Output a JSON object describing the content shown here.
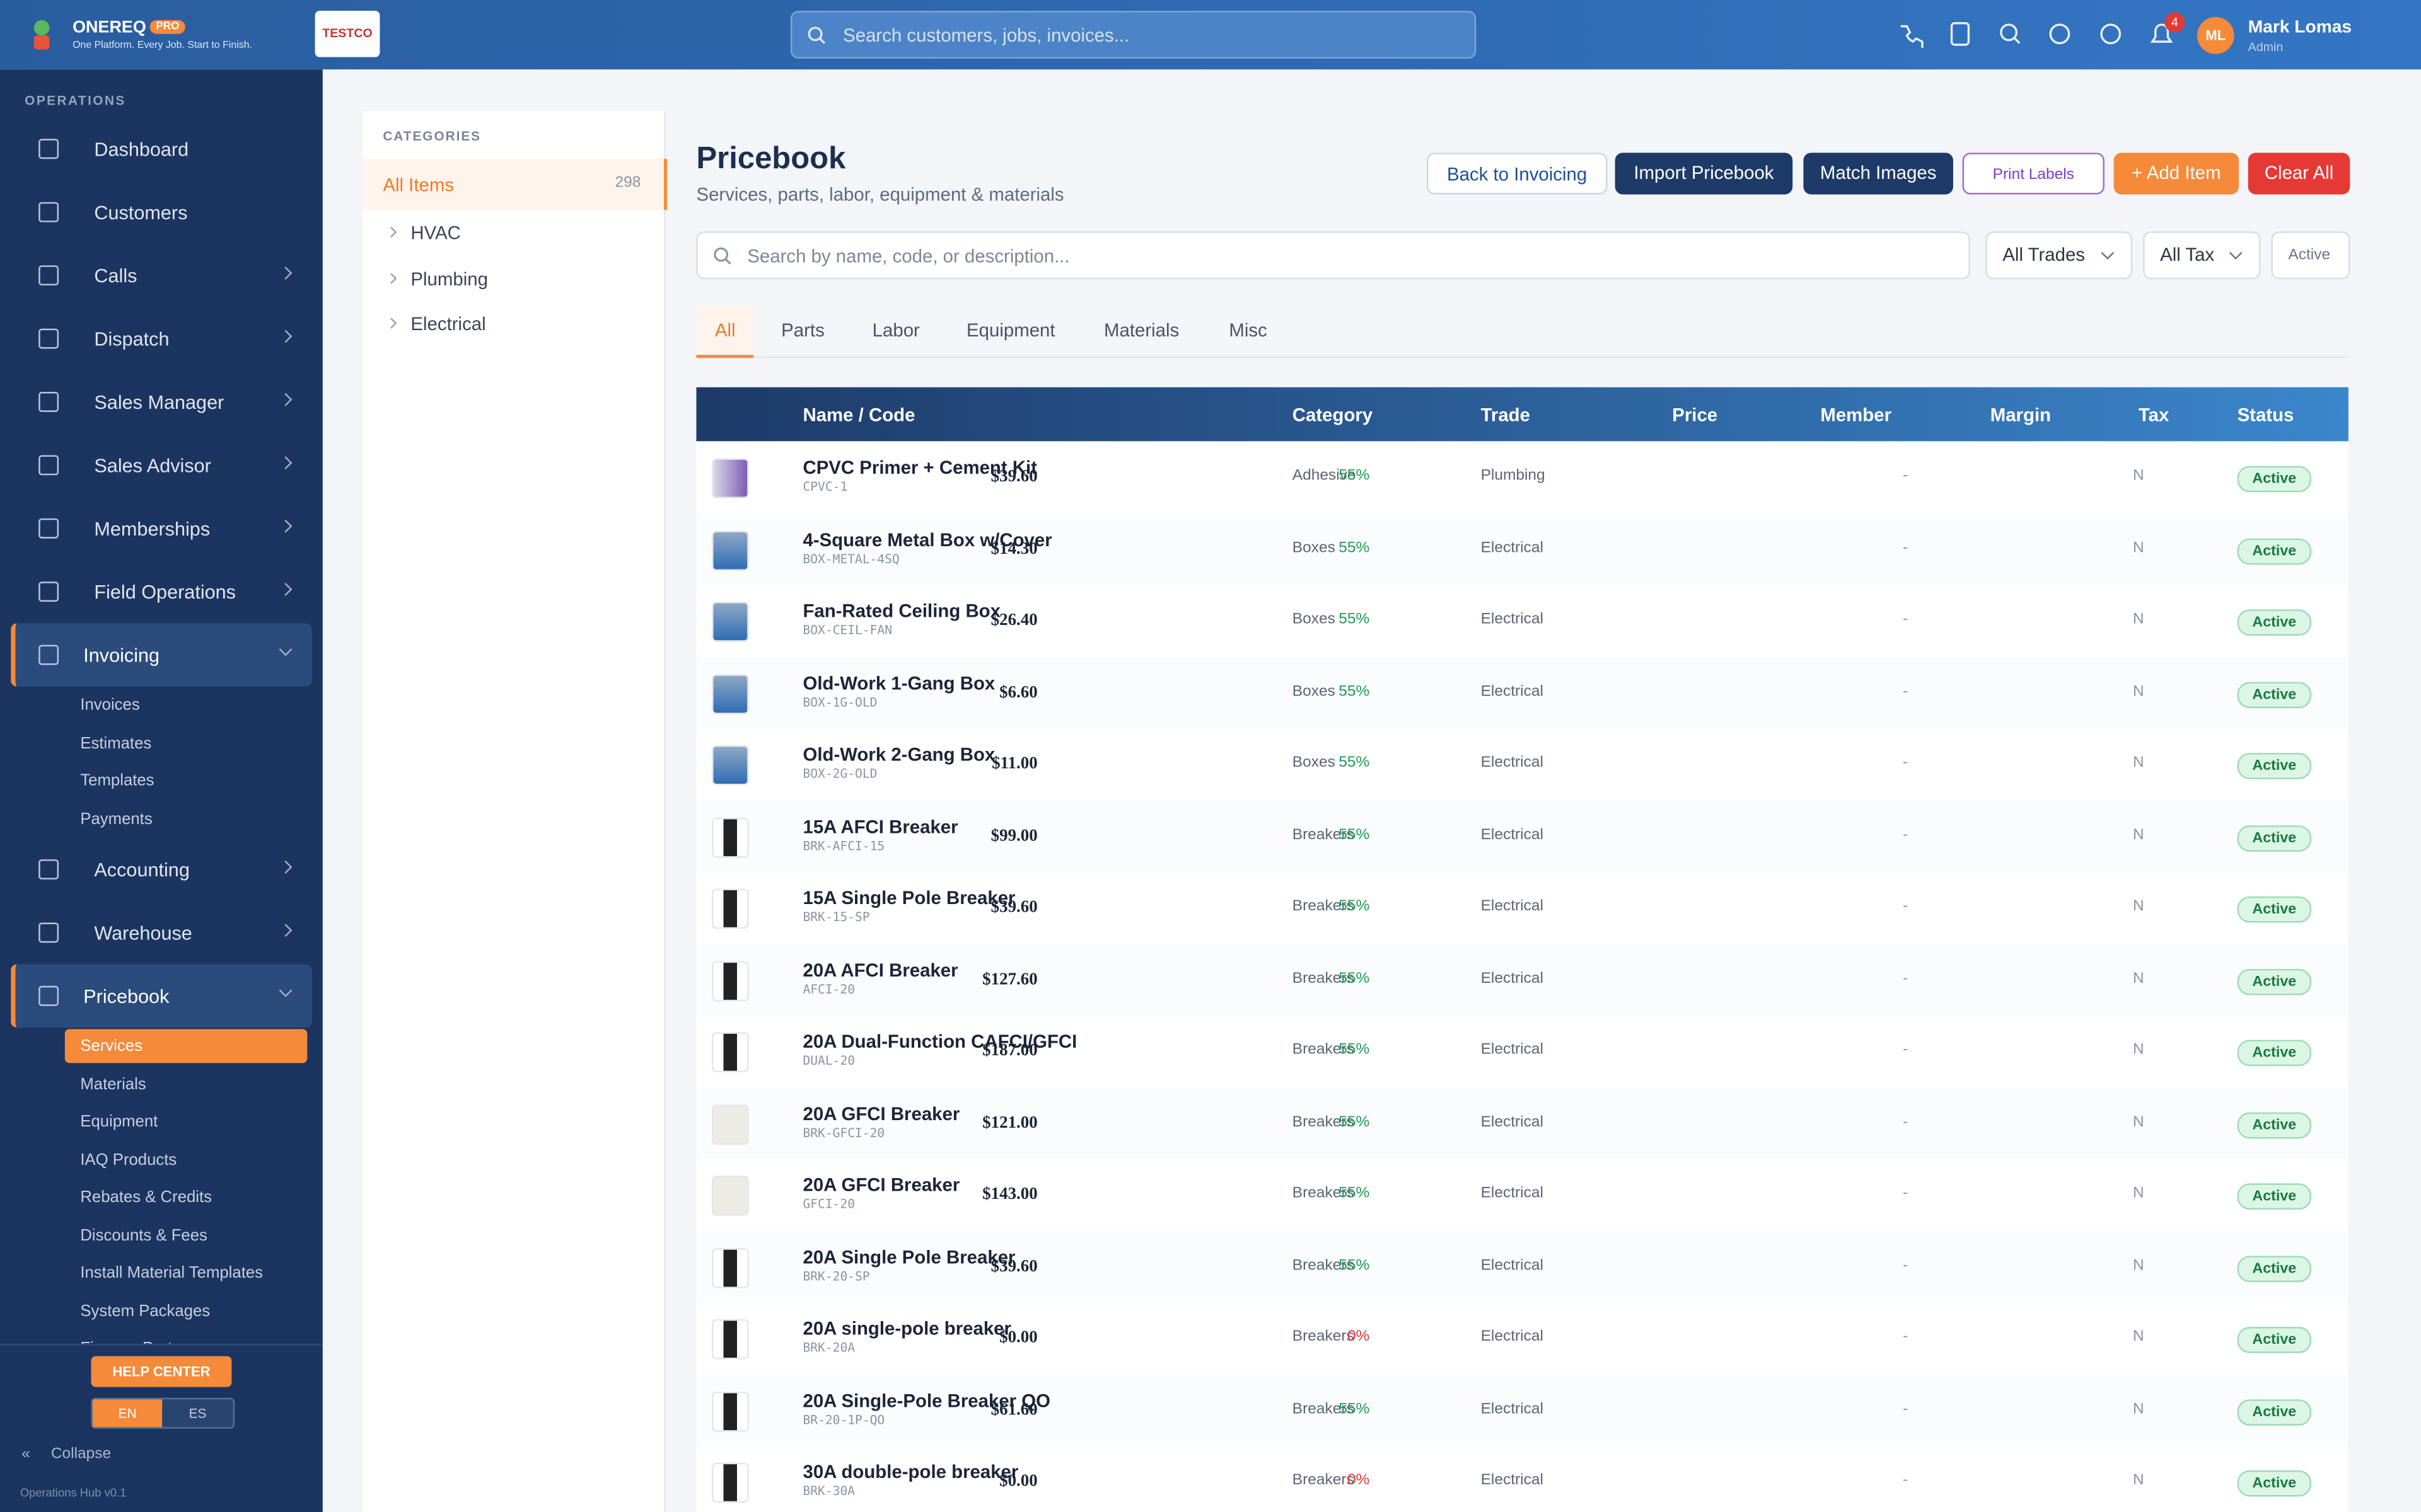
{
  "header": {
    "brand": "ONEREQ",
    "badge": "PRO",
    "tagline": "One Platform. Every Job. Start to Finish.",
    "logo": "TESTCO",
    "search": "Search customers, jobs, invoices...",
    "notifications": "4",
    "avatar": "ML",
    "user": "Mark Lomas",
    "role": "Admin"
  },
  "sidebar": {
    "section": "OPERATIONS",
    "items": [
      {
        "label": "Dashboard"
      },
      {
        "label": "Customers"
      },
      {
        "label": "Calls"
      },
      {
        "label": "Dispatch"
      },
      {
        "label": "Sales Manager"
      },
      {
        "label": "Sales Advisor"
      },
      {
        "label": "Memberships"
      },
      {
        "label": "Field Operations"
      },
      {
        "label": "Invoicing",
        "children": [
          "Invoices",
          "Estimates",
          "Templates",
          "Payments"
        ]
      },
      {
        "label": "Accounting"
      },
      {
        "label": "Warehouse"
      },
      {
        "label": "Pricebook",
        "children": [
          "Services",
          "Materials",
          "Equipment",
          "IAQ Products",
          "Rebates & Credits",
          "Discounts & Fees",
          "Install Material Templates",
          "System Packages",
          "Finance Partners"
        ]
      }
    ],
    "help": "HELP CENTER",
    "lang": [
      "EN",
      "ES"
    ],
    "collapse": "Collapse",
    "version": "Operations Hub v0.1"
  },
  "categories": {
    "title": "CATEGORIES",
    "items": [
      {
        "label": "All Items",
        "count": "298"
      },
      {
        "label": "HVAC"
      },
      {
        "label": "Plumbing"
      },
      {
        "label": "Electrical"
      }
    ]
  },
  "main": {
    "title": "Pricebook",
    "subtitle": "Services, parts, labor, equipment & materials",
    "buttons": [
      "Back to Invoicing",
      "Import Pricebook",
      "Match Images",
      "Print Labels",
      "+ Add Item",
      "Clear All"
    ],
    "search": "Search by name, code, or description...",
    "filters": [
      "All Trades",
      "All Tax",
      "Active"
    ],
    "tabs": [
      "All",
      "Parts",
      "Labor",
      "Equipment",
      "Materials",
      "Misc"
    ]
  },
  "table": {
    "columns": [
      "Name / Code",
      "Category",
      "Trade",
      "Price",
      "Member",
      "Margin",
      "Tax",
      "Status"
    ],
    "rows": [
      [
        "CPVC Primer + Cement Kit",
        "CPVC-1",
        "Adhesive",
        "Plumbing",
        "$39.60",
        "-",
        "55%",
        "N",
        "Active"
      ],
      [
        "4-Square Metal Box w/Cover",
        "BOX-METAL-4SQ",
        "Boxes",
        "Electrical",
        "$14.30",
        "-",
        "55%",
        "N",
        "Active"
      ],
      [
        "Fan-Rated Ceiling Box",
        "BOX-CEIL-FAN",
        "Boxes",
        "Electrical",
        "$26.40",
        "-",
        "55%",
        "N",
        "Active"
      ],
      [
        "Old-Work 1-Gang Box",
        "BOX-1G-OLD",
        "Boxes",
        "Electrical",
        "$6.60",
        "-",
        "55%",
        "N",
        "Active"
      ],
      [
        "Old-Work 2-Gang Box",
        "BOX-2G-OLD",
        "Boxes",
        "Electrical",
        "$11.00",
        "-",
        "55%",
        "N",
        "Active"
      ],
      [
        "15A AFCI Breaker",
        "BRK-AFCI-15",
        "Breakers",
        "Electrical",
        "$99.00",
        "-",
        "55%",
        "N",
        "Active"
      ],
      [
        "15A Single Pole Breaker",
        "BRK-15-SP",
        "Breakers",
        "Electrical",
        "$39.60",
        "-",
        "55%",
        "N",
        "Active"
      ],
      [
        "20A AFCI Breaker",
        "AFCI-20",
        "Breakers",
        "Electrical",
        "$127.60",
        "-",
        "55%",
        "N",
        "Active"
      ],
      [
        "20A Dual-Function CAFCI/GFCI",
        "DUAL-20",
        "Breakers",
        "Electrical",
        "$187.00",
        "-",
        "55%",
        "N",
        "Active"
      ],
      [
        "20A GFCI Breaker",
        "BRK-GFCI-20",
        "Breakers",
        "Electrical",
        "$121.00",
        "-",
        "55%",
        "N",
        "Active"
      ],
      [
        "20A GFCI Breaker",
        "GFCI-20",
        "Breakers",
        "Electrical",
        "$143.00",
        "-",
        "55%",
        "N",
        "Active"
      ],
      [
        "20A Single Pole Breaker",
        "BRK-20-SP",
        "Breakers",
        "Electrical",
        "$39.60",
        "-",
        "55%",
        "N",
        "Active"
      ],
      [
        "20A single-pole breaker",
        "BRK-20A",
        "Breakers",
        "Electrical",
        "$0.00",
        "-",
        "0%",
        "N",
        "Active"
      ],
      [
        "20A Single-Pole Breaker QO",
        "BR-20-1P-QO",
        "Breakers",
        "Electrical",
        "$61.60",
        "-",
        "55%",
        "N",
        "Active"
      ],
      [
        "30A double-pole breaker",
        "BRK-30A",
        "Breakers",
        "Electrical",
        "$0.00",
        "-",
        "0%",
        "N",
        "Active"
      ]
    ]
  }
}
